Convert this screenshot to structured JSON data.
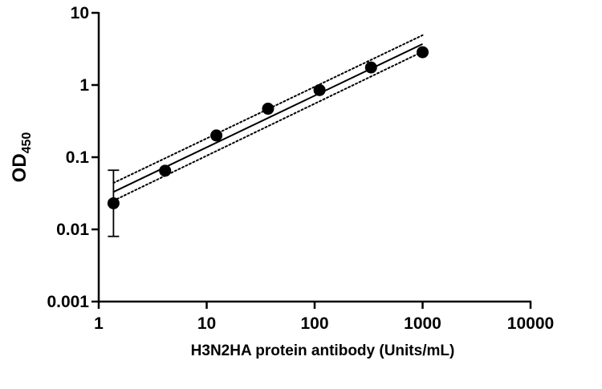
{
  "chart_data": {
    "type": "scatter",
    "scale": {
      "x": "log10",
      "y": "log10"
    },
    "xlim": [
      1,
      10000
    ],
    "ylim": [
      0.001,
      10
    ],
    "xlabel": "H3N2HA protein antibody (Units/mL)",
    "ylabel_main": "OD",
    "ylabel_sub": "450",
    "x_ticks": [
      {
        "value": 1,
        "label": "1"
      },
      {
        "value": 10,
        "label": "10"
      },
      {
        "value": 100,
        "label": "100"
      },
      {
        "value": 1000,
        "label": "1000"
      },
      {
        "value": 10000,
        "label": "10000"
      }
    ],
    "y_ticks": [
      {
        "value": 0.001,
        "label": "0.001"
      },
      {
        "value": 0.01,
        "label": "0.01"
      },
      {
        "value": 0.1,
        "label": "0.1"
      },
      {
        "value": 1,
        "label": "1"
      },
      {
        "value": 10,
        "label": "10"
      }
    ],
    "points": [
      {
        "x": 1.37,
        "y": 0.023,
        "err_low": 0.008,
        "err_high": 0.066
      },
      {
        "x": 4.12,
        "y": 0.065
      },
      {
        "x": 12.3,
        "y": 0.2
      },
      {
        "x": 37,
        "y": 0.47
      },
      {
        "x": 111,
        "y": 0.85
      },
      {
        "x": 333,
        "y": 1.75
      },
      {
        "x": 1000,
        "y": 2.85
      }
    ],
    "fit_line": {
      "x": [
        1.37,
        1000
      ],
      "y": [
        0.033,
        3.7
      ]
    },
    "confidence_band": {
      "upper": {
        "x": [
          1.37,
          1000
        ],
        "y": [
          0.044,
          4.9
        ]
      },
      "lower": {
        "x": [
          1.37,
          1000
        ],
        "y": [
          0.025,
          2.9
        ]
      }
    },
    "grid": false,
    "marker_color": "#000000",
    "line_color": "#000000"
  }
}
